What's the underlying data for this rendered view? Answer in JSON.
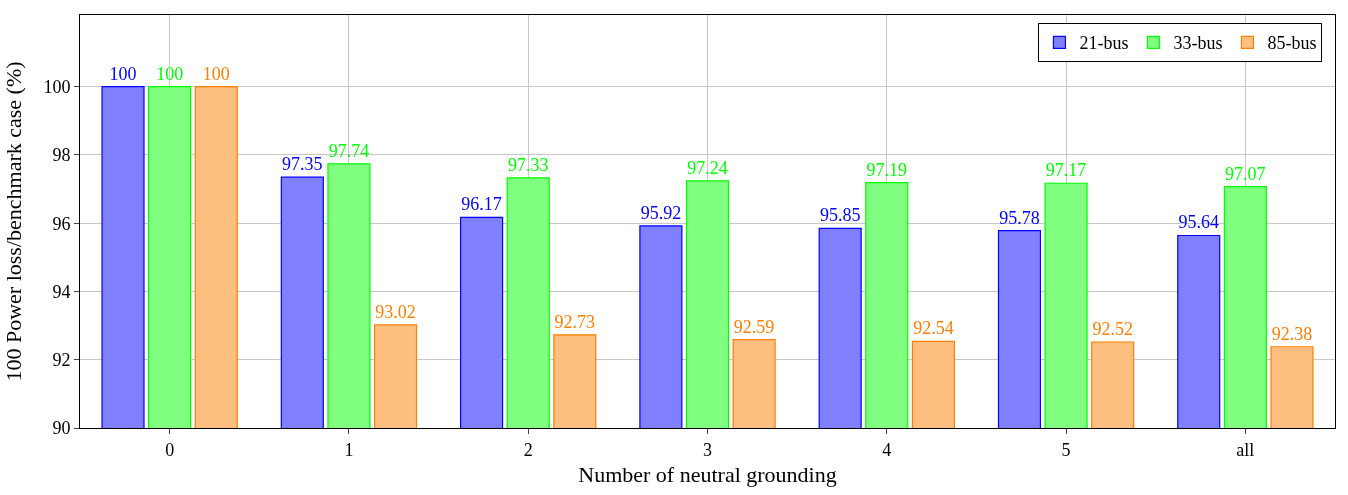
{
  "chart_data": {
    "type": "bar",
    "xlabel": "Number of neutral grounding",
    "ylabel": "100 Power loss/benchmark case (%)",
    "categories": [
      "0",
      "1",
      "2",
      "3",
      "4",
      "5",
      "all"
    ],
    "series": [
      {
        "name": "21-bus",
        "color": "#8080ff",
        "values": [
          100,
          97.35,
          96.17,
          95.92,
          95.85,
          95.78,
          95.64
        ]
      },
      {
        "name": "33-bus",
        "color": "#80ff80",
        "values": [
          100,
          97.74,
          97.33,
          97.24,
          97.19,
          97.17,
          97.07
        ]
      },
      {
        "name": "85-bus",
        "color": "#ffbf80",
        "values": [
          100,
          93.02,
          92.73,
          92.59,
          92.54,
          92.52,
          92.38
        ]
      }
    ],
    "ylim": [
      90,
      102.1
    ],
    "yticks": [
      90,
      92,
      94,
      96,
      98,
      100
    ],
    "grid": true,
    "legend": "top right",
    "data_labels": true
  }
}
